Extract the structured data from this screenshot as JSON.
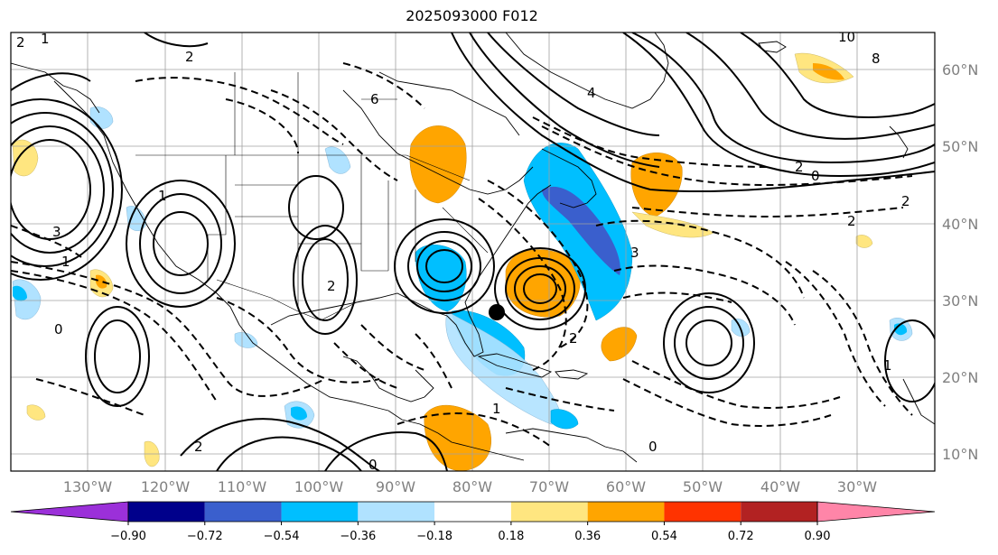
{
  "title": "2025093000 F012",
  "longitude_labels": [
    "130°W",
    "120°W",
    "110°W",
    "100°W",
    "90°W",
    "80°W",
    "70°W",
    "60°W",
    "50°W",
    "40°W",
    "30°W"
  ],
  "latitude_labels": [
    "60°N",
    "50°N",
    "40°N",
    "30°N",
    "20°N",
    "10°N"
  ],
  "colorbar": {
    "ticks": [
      "−0.90",
      "−0.72",
      "−0.54",
      "−0.36",
      "−0.18",
      "0.18",
      "0.36",
      "0.54",
      "0.72",
      "0.90"
    ],
    "colors": [
      "#9b30d9",
      "#00008b",
      "#3a5fcd",
      "#00bfff",
      "#b0e2ff",
      "#ffffff",
      "#ffe680",
      "#ffa500",
      "#ff3300",
      "#b22222",
      "#ff85a8"
    ]
  },
  "contour_labels": [
    "2",
    "1",
    "2",
    "10",
    "8",
    "6",
    "4",
    "2",
    "0",
    "2",
    "3",
    "2",
    "1",
    "0",
    "1",
    "2",
    "3",
    "2",
    "1",
    "2",
    "1",
    "0",
    "0"
  ],
  "marker": {
    "type": "storm-center-dot",
    "color": "#000000"
  }
}
